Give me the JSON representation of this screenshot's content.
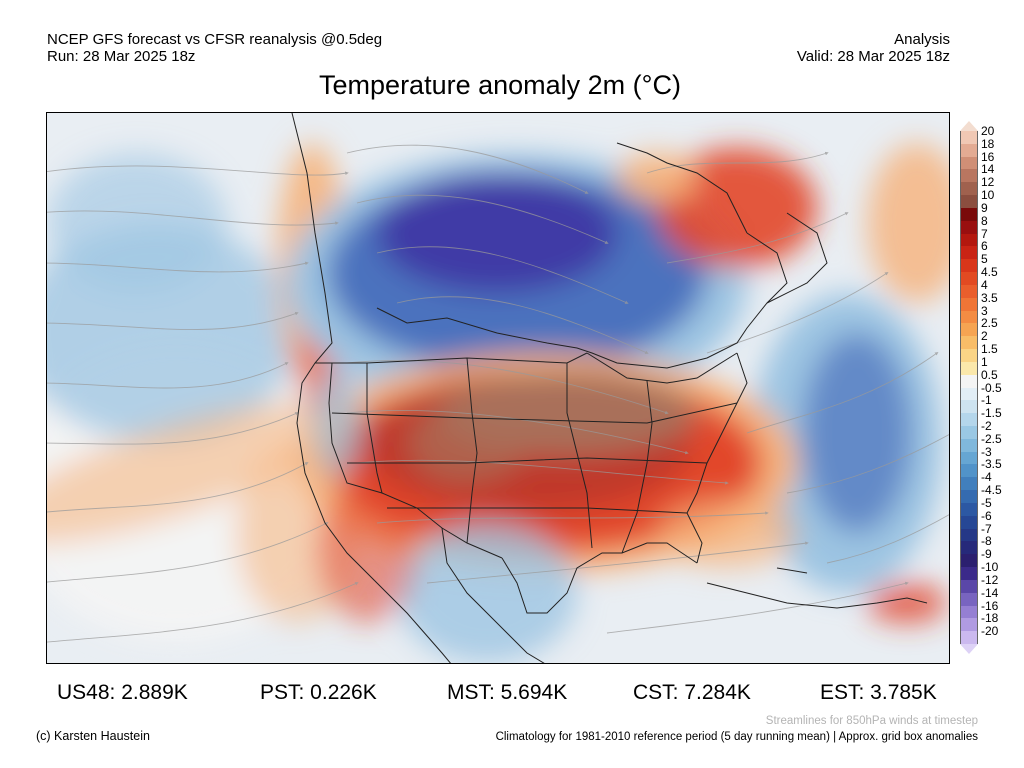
{
  "header": {
    "left_line1": "NCEP GFS forecast vs CFSR reanalysis @0.5deg",
    "left_line2": "Run: 28 Mar 2025 18z",
    "right_line1": "Analysis",
    "right_line2": "Valid: 28 Mar 2025 18z"
  },
  "title": "Temperature anomaly 2m (°C)",
  "colorbar": {
    "levels": [
      "20",
      "18",
      "16",
      "14",
      "12",
      "10",
      "9",
      "8",
      "7",
      "6",
      "5",
      "4.5",
      "4",
      "3.5",
      "3",
      "2.5",
      "2",
      "1.5",
      "1",
      "0.5",
      "-0.5",
      "-1",
      "-1.5",
      "-2",
      "-2.5",
      "-3",
      "-3.5",
      "-4",
      "-4.5",
      "-5",
      "-6",
      "-7",
      "-8",
      "-9",
      "-10",
      "-12",
      "-14",
      "-16",
      "-18",
      "-20"
    ],
    "colors": [
      "#f0c8b4",
      "#e3ab93",
      "#d08f76",
      "#b97660",
      "#a0614e",
      "#8b4e3f",
      "#7a0a0a",
      "#990f0f",
      "#b3180f",
      "#c92415",
      "#d9361a",
      "#e24a22",
      "#ea5e2c",
      "#f07536",
      "#f48c43",
      "#f6a452",
      "#f8bd68",
      "#fad486",
      "#fbe8ab",
      "#f4f4f4",
      "#e2eef6",
      "#cde3f0",
      "#b4d6eb",
      "#9ac8e4",
      "#80b8dc",
      "#66a6d3",
      "#5193c9",
      "#417fbd",
      "#356bb0",
      "#2c58a3",
      "#264795",
      "#253887",
      "#26297a",
      "#2b1f6f",
      "#3b2a8a",
      "#5a47a8",
      "#7864c0",
      "#957fd3",
      "#b09be2",
      "#cbb9ef"
    ],
    "top_color": "#f3ddd0",
    "bottom_color": "#ddd2f6"
  },
  "stats": [
    {
      "label": "US48:",
      "value": "2.889K"
    },
    {
      "label": "PST:",
      "value": "0.226K"
    },
    {
      "label": "MST:",
      "value": "5.694K"
    },
    {
      "label": "CST:",
      "value": "7.284K"
    },
    {
      "label": "EST:",
      "value": "3.785K"
    }
  ],
  "footer": {
    "copyright": "(c) Karsten Haustein",
    "streamlines_note": "Streamlines for 850hPa winds at timestep",
    "climatology_note": "Climatology for 1981-2010 reference period (5 day running mean) | Approx. grid box anomalies"
  },
  "map_colors": {
    "ocean_bg": "#e9eef3",
    "warm_outer": "#f6b27a",
    "warm_mid": "#e2462a",
    "warm_core": "#c0392b",
    "warm_brown": "#a9705a",
    "cold_outer": "#9cc4e2",
    "cold_mid": "#4b72be",
    "cold_core": "#3f3aa6",
    "pale": "#f4f4f4",
    "border": "#222222",
    "stream": "#9a9a9a"
  }
}
